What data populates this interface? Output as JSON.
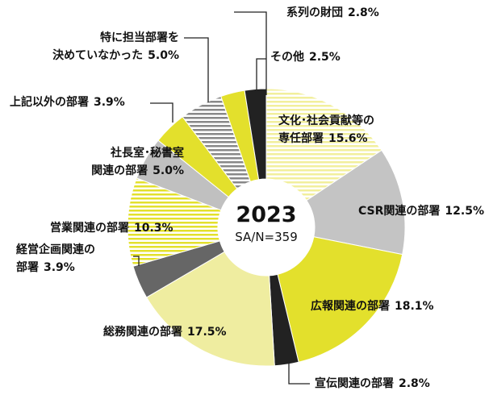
{
  "chart_data": {
    "type": "pie",
    "center_title": "2023",
    "center_subtitle": "SA/N=359",
    "categories": [
      "文化･社会貢献等の\n専任部署",
      "CSR関連の部署",
      "広報関連の部署",
      "宣伝関連の部署",
      "総務関連の部署",
      "経営企画関連の\n部署",
      "営業関連の部署",
      "社長室･秘書室\n関連の部署",
      "上記以外の部署",
      "特に担当部署を\n決めていなかった",
      "系列の財団",
      "その他"
    ],
    "values": [
      15.6,
      12.5,
      18.1,
      2.8,
      17.5,
      3.9,
      10.3,
      5.0,
      3.9,
      5.0,
      2.8,
      2.5
    ],
    "value_labels": [
      "15.6%",
      "12.5%",
      "18.1%",
      "2.8%",
      "17.5%",
      "3.9%",
      "10.3%",
      "5.0%",
      "3.9%",
      "5.0%",
      "2.8%",
      "2.5%"
    ],
    "colors": [
      "#f2ef9c",
      "#c4c4c4",
      "#e3e02c",
      "#222222",
      "#efeda0",
      "#666666",
      "#e3e02c",
      "#c0c0c0",
      "#e3e02c",
      "#888888",
      "#e3e02c",
      "#222222"
    ],
    "hatched": [
      true,
      false,
      false,
      false,
      false,
      false,
      true,
      false,
      false,
      true,
      false,
      false
    ]
  }
}
